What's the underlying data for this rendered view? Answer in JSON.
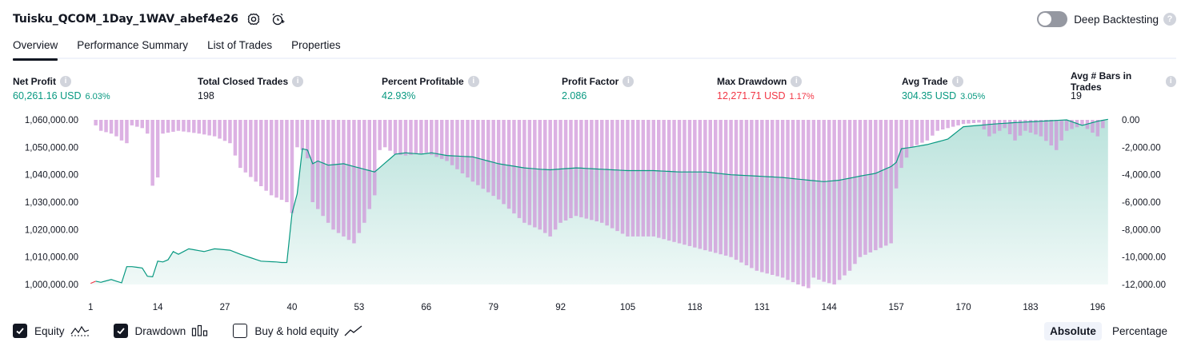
{
  "header": {
    "title": "Tuisku_QCOM_1Day_1WAV_abef4e26",
    "settings_icon": "gear-icon",
    "alert_icon": "alarm-add-icon",
    "deep_backtesting_label": "Deep Backtesting",
    "deep_backtesting_on": false
  },
  "tabs": [
    {
      "label": "Overview",
      "active": true
    },
    {
      "label": "Performance Summary",
      "active": false
    },
    {
      "label": "List of Trades",
      "active": false
    },
    {
      "label": "Properties",
      "active": false
    }
  ],
  "stats": [
    {
      "label": "Net Profit",
      "value": "60,261.16 USD",
      "pct": "6.03%",
      "color": "green"
    },
    {
      "label": "Total Closed Trades",
      "value": "198",
      "pct": "",
      "color": "dark"
    },
    {
      "label": "Percent Profitable",
      "value": "42.93%",
      "pct": "",
      "color": "green"
    },
    {
      "label": "Profit Factor",
      "value": "2.086",
      "pct": "",
      "color": "green"
    },
    {
      "label": "Max Drawdown",
      "value": "12,271.71 USD",
      "pct": "1.17%",
      "color": "red"
    },
    {
      "label": "Avg Trade",
      "value": "304.35 USD",
      "pct": "3.05%",
      "color": "green"
    },
    {
      "label": "Avg # Bars in Trades",
      "value": "19",
      "pct": "",
      "color": "dark"
    }
  ],
  "chart_data": {
    "type": "area",
    "x_tick_labels": [
      "1",
      "14",
      "27",
      "40",
      "53",
      "66",
      "79",
      "92",
      "105",
      "118",
      "131",
      "144",
      "157",
      "170",
      "183",
      "196"
    ],
    "left_axis": {
      "ticks": [
        "1,060,000.00",
        "1,050,000.00",
        "1,040,000.00",
        "1,030,000.00",
        "1,020,000.00",
        "1,010,000.00",
        "1,000,000.00"
      ],
      "range": [
        1000000,
        1060000
      ]
    },
    "right_axis": {
      "ticks": [
        "0.00",
        "-2,000.00",
        "-4,000.00",
        "-6,000.00",
        "-8,000.00",
        "-10,000.00",
        "-12,000.00"
      ],
      "range": [
        -12000,
        0
      ]
    },
    "equity_color": "#089981",
    "drawdown_color": "#ce93d8",
    "series": [
      {
        "name": "Equity",
        "anchor_trades": [
          1,
          2,
          3,
          5,
          7,
          8,
          9,
          11,
          12,
          13,
          14,
          15,
          16,
          17,
          18,
          19,
          20,
          23,
          25,
          28,
          30,
          34,
          37,
          38,
          39,
          40,
          41,
          42,
          43,
          44,
          45,
          47,
          50,
          53,
          56,
          60,
          62,
          65,
          67,
          70,
          75,
          80,
          85,
          88,
          90,
          95,
          100,
          105,
          110,
          115,
          120,
          125,
          130,
          135,
          140,
          143,
          146,
          150,
          153,
          156,
          157,
          158,
          160,
          163,
          165,
          167,
          170,
          173,
          176,
          180,
          185,
          190,
          193,
          196,
          198
        ],
        "values": [
          1000400,
          1001200,
          1000800,
          1001800,
          1000600,
          1006500,
          1006500,
          1006000,
          1003000,
          1002800,
          1008500,
          1008200,
          1009000,
          1012000,
          1011000,
          1012000,
          1013000,
          1012000,
          1013000,
          1012500,
          1011000,
          1008500,
          1008200,
          1008000,
          1008000,
          1026000,
          1033000,
          1049500,
          1049000,
          1044000,
          1045000,
          1043500,
          1044000,
          1042500,
          1041000,
          1047500,
          1048000,
          1047500,
          1048000,
          1047000,
          1046500,
          1044000,
          1042500,
          1042000,
          1041800,
          1042500,
          1042000,
          1041500,
          1041500,
          1041000,
          1041000,
          1040000,
          1039500,
          1039000,
          1038000,
          1037500,
          1038000,
          1039500,
          1040500,
          1043000,
          1044500,
          1049500,
          1050000,
          1051000,
          1052000,
          1053000,
          1057500,
          1058000,
          1058500,
          1059000,
          1059500,
          1060000,
          1058000,
          1059500,
          1060200
        ]
      },
      {
        "name": "Drawdown",
        "anchor_trades": [
          1,
          3,
          5,
          6,
          7,
          8,
          9,
          11,
          12,
          13,
          14,
          15,
          18,
          22,
          25,
          28,
          30,
          33,
          36,
          39,
          40,
          41,
          42,
          43,
          44,
          46,
          48,
          50,
          52,
          54,
          55,
          56,
          57,
          58,
          60,
          62,
          64,
          66,
          70,
          75,
          80,
          85,
          88,
          90,
          92,
          95,
          100,
          105,
          110,
          115,
          120,
          125,
          130,
          135,
          138,
          140,
          141,
          143,
          145,
          148,
          150,
          153,
          156,
          157,
          158,
          160,
          163,
          165,
          168,
          170,
          173,
          175,
          178,
          180,
          182,
          185,
          188,
          190,
          193,
          196,
          198
        ],
        "values": [
          0,
          -800,
          -1000,
          -1200,
          -1500,
          -1700,
          -400,
          -600,
          -1000,
          -4800,
          -4200,
          -1000,
          -800,
          -1000,
          -1200,
          -1700,
          -3500,
          -4500,
          -5500,
          -6000,
          -6800,
          -2000,
          -2200,
          -2800,
          -6000,
          -7000,
          -8000,
          -8500,
          -9000,
          -7500,
          -6500,
          -5500,
          -2200,
          -2000,
          -2500,
          -2600,
          -2500,
          -2400,
          -3000,
          -4500,
          -5800,
          -7500,
          -8000,
          -8500,
          -7500,
          -7000,
          -7500,
          -8500,
          -8500,
          -9000,
          -9500,
          -10000,
          -11000,
          -11500,
          -12000,
          -12270,
          -11500,
          -11800,
          -12000,
          -11000,
          -10000,
          -9500,
          -9000,
          -5000,
          -3500,
          -2000,
          -1500,
          -800,
          -500,
          -300,
          -200,
          -1200,
          -600,
          -1500,
          -800,
          -1200,
          -2200,
          -800,
          -400,
          -1200,
          0
        ]
      },
      {
        "name": "Buy & hold equity",
        "visible": false
      }
    ]
  },
  "legend": [
    {
      "label": "Equity",
      "checked": true,
      "icon": "equity-icon"
    },
    {
      "label": "Drawdown",
      "checked": true,
      "icon": "bars-icon"
    },
    {
      "label": "Buy & hold equity",
      "checked": false,
      "icon": "line-trend-icon"
    }
  ],
  "modes": [
    {
      "label": "Absolute",
      "active": true
    },
    {
      "label": "Percentage",
      "active": false
    }
  ]
}
